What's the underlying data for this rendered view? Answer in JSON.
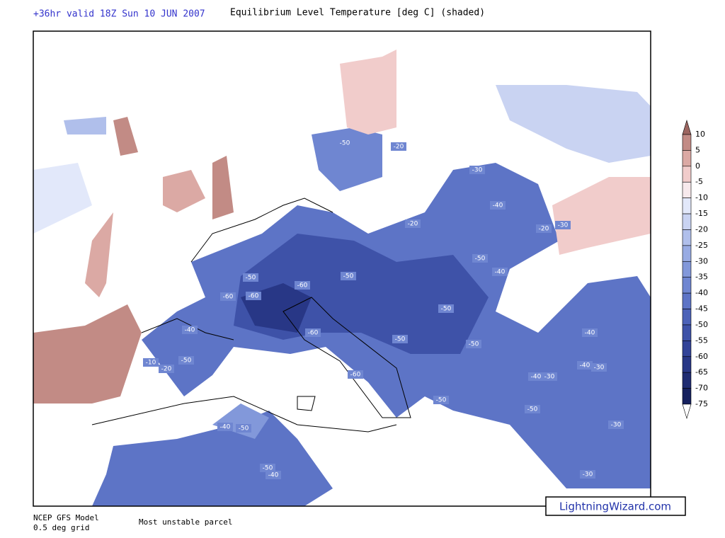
{
  "header": {
    "run": "+36hr valid 18Z Sun 10 JUN 2007",
    "title": "Equilibrium Level Temperature [deg C] (shaded)"
  },
  "legend": {
    "levels": [
      10,
      5,
      0,
      -5,
      -10,
      -15,
      -20,
      -25,
      -30,
      -35,
      -40,
      -45,
      -50,
      -55,
      -60,
      -65,
      -70,
      -75
    ],
    "colors": [
      "#9c6560",
      "#c28b85",
      "#dba9a4",
      "#f1cccb",
      "#f7e9ec",
      "#e2e8fa",
      "#c9d3f2",
      "#b0bfeb",
      "#98abe3",
      "#8298da",
      "#6f86d1",
      "#5d74c6",
      "#4c62b8",
      "#3e52a8",
      "#324398",
      "#283786",
      "#1f2c72",
      "#16215e",
      "#ffffff"
    ]
  },
  "map": {
    "contour_labels": [
      -50,
      -20,
      -30,
      -40,
      -20,
      -20,
      -30,
      -50,
      -40,
      -50,
      -50,
      -60,
      -60,
      -60,
      -50,
      -40,
      -60,
      -50,
      -50,
      -10,
      -50,
      -20,
      -60,
      -40,
      -40,
      -30,
      -40,
      -30,
      -50,
      -50,
      -40,
      -50,
      -30,
      -50,
      -40,
      -30
    ]
  },
  "footer": {
    "model": "NCEP GFS Model",
    "grid": "0.5 deg grid",
    "parcel": "Most unstable parcel",
    "brand": "LightningWizard.com"
  }
}
